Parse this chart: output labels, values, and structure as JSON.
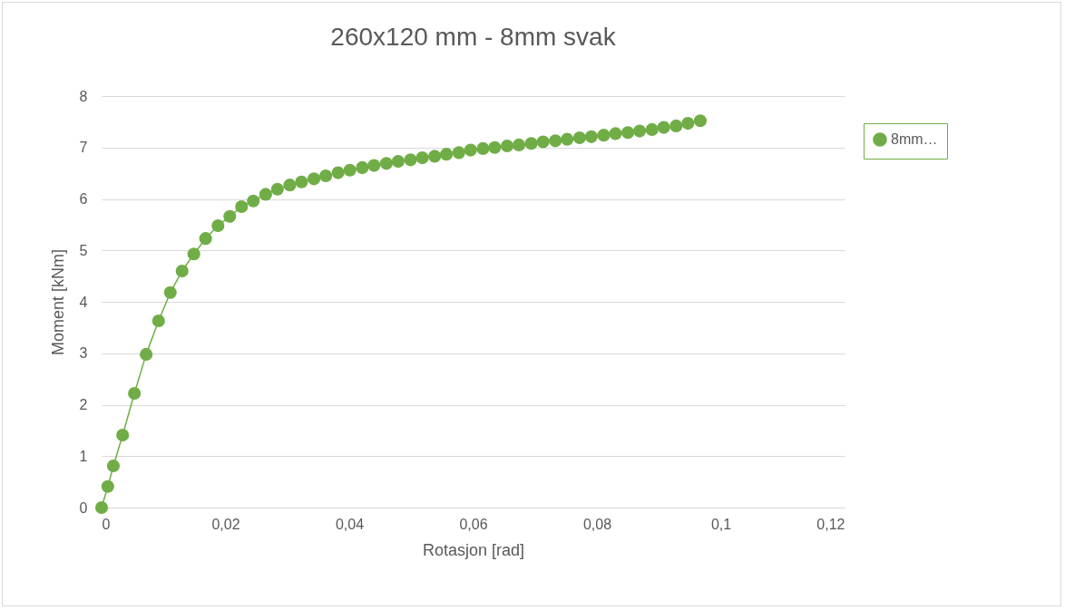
{
  "chart_data": {
    "type": "line",
    "title": "260x120 mm - 8mm svak",
    "xlabel": "Rotasjon [rad]",
    "ylabel": "Moment [kNm]",
    "xlim": [
      0,
      0.12
    ],
    "xticks": [
      0,
      {
        "value": 0.02,
        "label": "0,02"
      },
      {
        "value": 0.04,
        "label": "0,04"
      },
      {
        "value": 0.06,
        "label": "0,06"
      },
      {
        "value": 0.08,
        "label": "0,08"
      },
      {
        "value": 0.1,
        "label": "0,1"
      },
      {
        "value": 0.12,
        "label": "0,12"
      }
    ],
    "ylim": [
      0,
      8
    ],
    "yticks": [
      0,
      1,
      2,
      3,
      4,
      5,
      6,
      7,
      8
    ],
    "grid": "y",
    "legend": "right",
    "marker": "circle",
    "line_style": "solid",
    "series": [
      {
        "name": "8mm…",
        "color": "#70ad47",
        "x": [
          0,
          0.001,
          0.0019,
          0.0034,
          0.0053,
          0.0072,
          0.0092,
          0.0111,
          0.013,
          0.0149,
          0.0168,
          0.0188,
          0.0207,
          0.0226,
          0.0245,
          0.0265,
          0.0284,
          0.0304,
          0.0323,
          0.0343,
          0.0362,
          0.0382,
          0.0401,
          0.0421,
          0.044,
          0.046,
          0.0479,
          0.0499,
          0.0518,
          0.0538,
          0.0557,
          0.0577,
          0.0596,
          0.0616,
          0.0635,
          0.0655,
          0.0674,
          0.0694,
          0.0713,
          0.0733,
          0.0752,
          0.0772,
          0.0791,
          0.0811,
          0.083,
          0.085,
          0.0869,
          0.0889,
          0.0908,
          0.0928,
          0.0947,
          0.0967
        ],
        "values": [
          0,
          0.41,
          0.81,
          1.41,
          2.22,
          2.98,
          3.63,
          4.18,
          4.6,
          4.93,
          5.23,
          5.48,
          5.66,
          5.85,
          5.96,
          6.09,
          6.19,
          6.27,
          6.33,
          6.39,
          6.45,
          6.51,
          6.56,
          6.61,
          6.65,
          6.69,
          6.73,
          6.76,
          6.8,
          6.83,
          6.87,
          6.9,
          6.95,
          6.98,
          7.0,
          7.03,
          7.05,
          7.08,
          7.11,
          7.13,
          7.16,
          7.19,
          7.21,
          7.24,
          7.27,
          7.29,
          7.32,
          7.35,
          7.39,
          7.42,
          7.47,
          7.52
        ]
      }
    ]
  }
}
